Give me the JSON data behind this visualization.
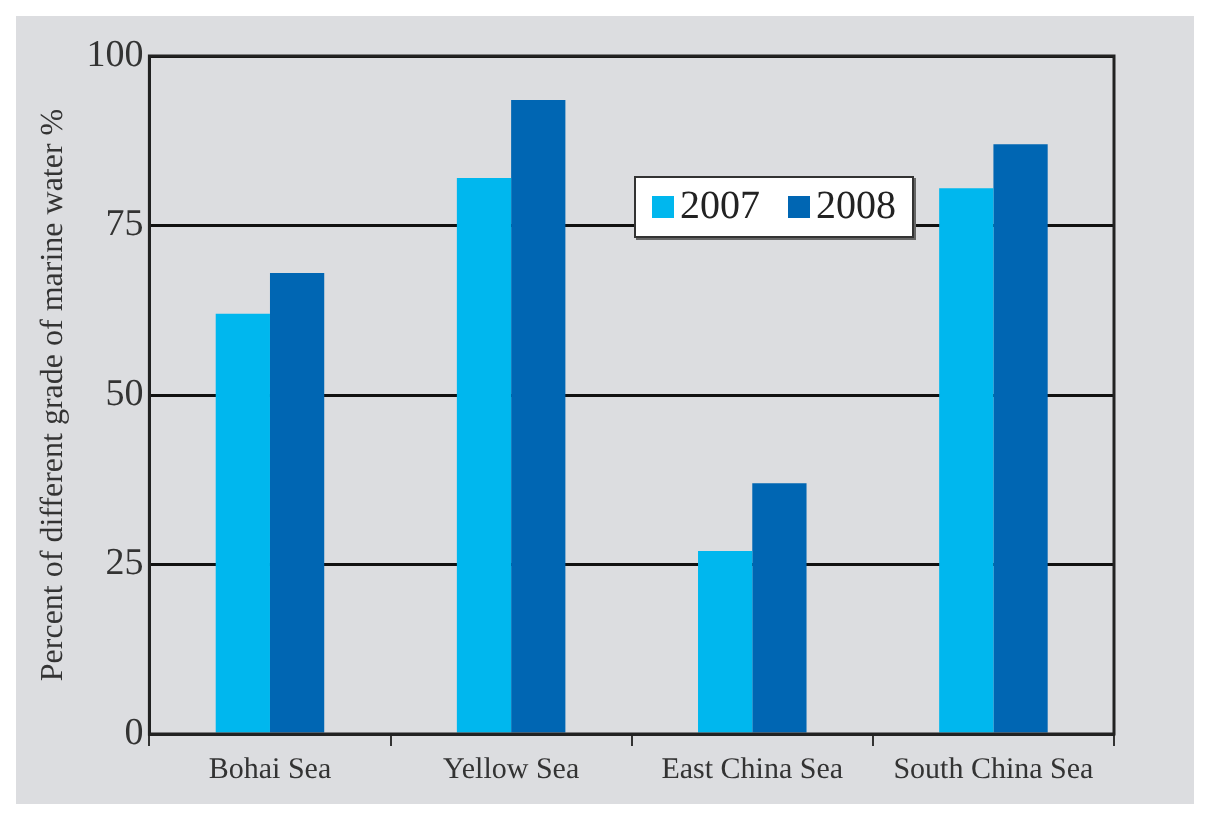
{
  "chart_data": {
    "type": "bar",
    "ylabel": "Percent of different grade of marine water %",
    "categories": [
      "Bohai Sea",
      "Yellow Sea",
      "East China Sea",
      "South China Sea"
    ],
    "series": [
      {
        "name": "2007",
        "color": "#00b7ee",
        "values": [
          62,
          82,
          27,
          80.5
        ]
      },
      {
        "name": "2008",
        "color": "#0066b3",
        "values": [
          68,
          93.5,
          37,
          87
        ]
      }
    ],
    "ylim": [
      0,
      100
    ],
    "yticks": [
      0,
      25,
      50,
      75,
      100
    ],
    "grid": "y",
    "legend": "top right"
  }
}
